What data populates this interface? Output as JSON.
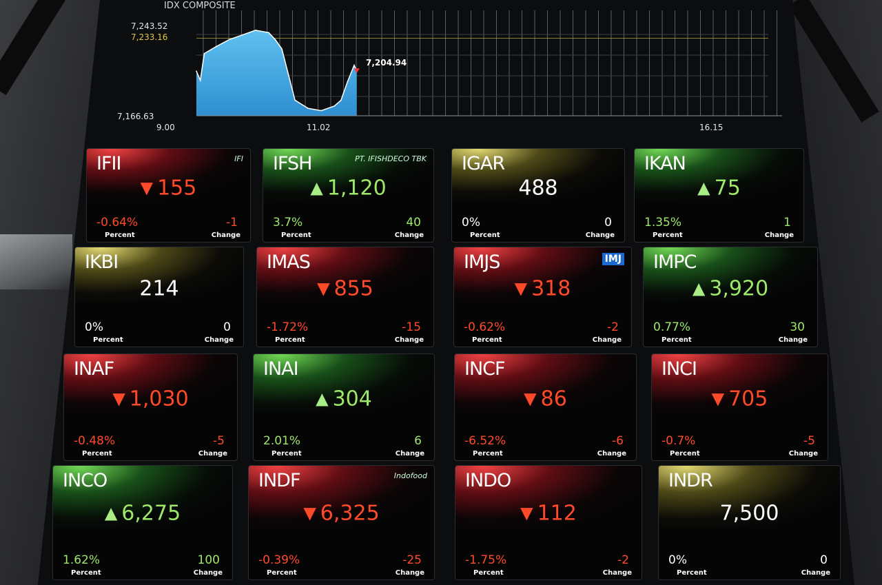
{
  "chart_data": {
    "type": "area",
    "title": "IDX COMPOSITE",
    "y_labels": {
      "high": "7,243.52",
      "previous_close": "7,233.16",
      "low": "7,166.63",
      "current": "7,204.94"
    },
    "x_labels": [
      "9.00",
      "11.02",
      "16.15"
    ],
    "xlim": [
      "9:00",
      "16:15"
    ],
    "ylim": [
      7166.63,
      7243.52
    ],
    "x": [
      "9:00",
      "9:03",
      "9:06",
      "9:15",
      "9:25",
      "9:35",
      "9:45",
      "9:55",
      "10:00",
      "10:05",
      "10:10",
      "10:15",
      "10:25",
      "10:35",
      "10:45",
      "10:50",
      "10:55",
      "11:00",
      "11:02"
    ],
    "values": [
      7205,
      7197,
      7220,
      7226,
      7232,
      7236,
      7240,
      7238,
      7232,
      7224,
      7202,
      7180,
      7173,
      7171,
      7175,
      7180,
      7196,
      7210,
      7204.94
    ],
    "colors": {
      "fill": "#2f8fd0",
      "line": "#ffffff",
      "previous_close_line": "#e6c84a"
    }
  },
  "tiles": [
    {
      "symbol": "IFII",
      "price": "155",
      "trend": "down",
      "percent": "-0.64%",
      "change": "-1",
      "logo": "IFI"
    },
    {
      "symbol": "IFSH",
      "price": "1,120",
      "trend": "up",
      "percent": "3.7%",
      "change": "40",
      "logo": "PT. IFISHDECO TBK"
    },
    {
      "symbol": "IGAR",
      "price": "488",
      "trend": "flat",
      "percent": "0%",
      "change": "0"
    },
    {
      "symbol": "IKAN",
      "price": "75",
      "trend": "up",
      "percent": "1.35%",
      "change": "1"
    },
    {
      "symbol": "IKBI",
      "price": "214",
      "trend": "flat",
      "percent": "0%",
      "change": "0"
    },
    {
      "symbol": "IMAS",
      "price": "855",
      "trend": "down",
      "percent": "-1.72%",
      "change": "-15"
    },
    {
      "symbol": "IMJS",
      "price": "318",
      "trend": "down",
      "percent": "-0.62%",
      "change": "-2",
      "logo": "IMJ"
    },
    {
      "symbol": "IMPC",
      "price": "3,920",
      "trend": "up",
      "percent": "0.77%",
      "change": "30"
    },
    {
      "symbol": "INAF",
      "price": "1,030",
      "trend": "down",
      "percent": "-0.48%",
      "change": "-5"
    },
    {
      "symbol": "INAI",
      "price": "304",
      "trend": "up",
      "percent": "2.01%",
      "change": "6"
    },
    {
      "symbol": "INCF",
      "price": "86",
      "trend": "down",
      "percent": "-6.52%",
      "change": "-6"
    },
    {
      "symbol": "INCI",
      "price": "705",
      "trend": "down",
      "percent": "-0.7%",
      "change": "-5"
    },
    {
      "symbol": "INCO",
      "price": "6,275",
      "trend": "up",
      "percent": "1.62%",
      "change": "100"
    },
    {
      "symbol": "INDF",
      "price": "6,325",
      "trend": "down",
      "percent": "-0.39%",
      "change": "-25",
      "logo": "Indofood"
    },
    {
      "symbol": "INDO",
      "price": "112",
      "trend": "down",
      "percent": "-1.75%",
      "change": "-2"
    },
    {
      "symbol": "INDR",
      "price": "7,500",
      "trend": "flat",
      "percent": "0%",
      "change": "0"
    }
  ],
  "labels": {
    "percent": "Percent",
    "change": "Change"
  },
  "colors": {
    "down": "#ff4a2a",
    "up": "#9ee86a",
    "flat": "#ffffff"
  }
}
